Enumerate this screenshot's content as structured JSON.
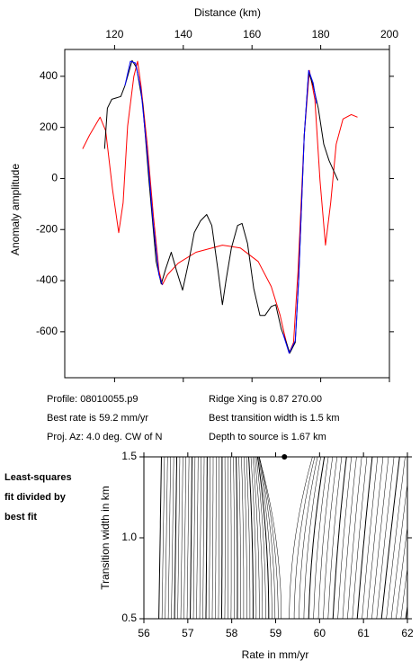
{
  "chart_data": [
    {
      "type": "line",
      "x_label": "Distance (km)",
      "y_label": "Anomaly amplitude",
      "xlim": [
        105.5,
        200
      ],
      "xticks": [
        120,
        140,
        160,
        180,
        200
      ],
      "ylim": [
        -780,
        505
      ],
      "yticks": [
        400,
        200,
        0,
        -200,
        -400,
        -600
      ],
      "series": [
        {
          "color": "#ff0000",
          "x": [
            110.7,
            112.7,
            115.8,
            117.4,
            119.4,
            121.2,
            122.5,
            123.8,
            125.6,
            126.7,
            127.7,
            129.5,
            131.3,
            132.9,
            133.9,
            135.4,
            138.5,
            143.7,
            151.4,
            156.6,
            161.8,
            165.6,
            168.2,
            169.5,
            170.8,
            172.1,
            173.4,
            175.2,
            176.7,
            178.3,
            179.8,
            181.4,
            182.9,
            184.5,
            186.5,
            188.9,
            190.7
          ],
          "values": [
            116,
            169,
            240,
            187,
            -42,
            -212,
            -95,
            205,
            399,
            459,
            363,
            134,
            -148,
            -360,
            -416,
            -377,
            -332,
            -289,
            -261,
            -272,
            -325,
            -423,
            -536,
            -614,
            -684,
            -642,
            -360,
            169,
            423,
            310,
            -7,
            -261,
            -95,
            134,
            233,
            250,
            240
          ]
        },
        {
          "color": "#000000",
          "x": [
            117.1,
            117.9,
            119.2,
            121.8,
            123.0,
            125.1,
            126.4,
            128.2,
            130.0,
            132.1,
            133.6,
            134.9,
            136.5,
            138.0,
            139.8,
            141.6,
            143.2,
            145.0,
            146.8,
            148.3,
            150.1,
            151.4,
            152.5,
            154.0,
            155.8,
            157.1,
            158.7,
            160.5,
            162.3,
            163.8,
            165.6,
            166.9,
            168.5,
            170.0,
            171.0,
            172.6,
            173.6,
            175.2,
            176.5,
            177.8,
            179.3,
            180.9,
            182.4,
            185.0
          ],
          "values": [
            116,
            275,
            310,
            321,
            363,
            462,
            434,
            293,
            -7,
            -325,
            -413,
            -353,
            -289,
            -360,
            -437,
            -325,
            -212,
            -166,
            -141,
            -184,
            -360,
            -494,
            -395,
            -272,
            -184,
            -176,
            -254,
            -430,
            -536,
            -536,
            -501,
            -494,
            -589,
            -642,
            -684,
            -642,
            -395,
            169,
            416,
            363,
            275,
            134,
            71,
            -7
          ]
        },
        {
          "color": "#0000ff",
          "x": [
            123.0,
            124.6,
            126.1,
            127.7,
            129.5,
            131.3,
            132.9,
            133.9,
            null,
            169.0,
            170.8,
            172.6,
            173.6,
            175.2,
            176.5,
            177.8,
            178.8
          ],
          "values": [
            363,
            459,
            452,
            346,
            99,
            -183,
            -377,
            -416,
            null,
            -607,
            -684,
            -635,
            -395,
            169,
            423,
            374,
            293
          ]
        }
      ]
    },
    {
      "type": "contour",
      "x_label": "Rate in mm/yr",
      "y_label": "Transition width in km",
      "xlim": [
        56,
        62
      ],
      "xticks": [
        56,
        57,
        58,
        59,
        60,
        61,
        62
      ],
      "ylim": [
        0.5,
        1.5
      ],
      "yticks": [
        0.5,
        {
          "value": 1,
          "label": "1.0"
        },
        1.5
      ],
      "best_point": {
        "x": 59.2,
        "y": 1.5
      }
    }
  ],
  "info": {
    "left": [
      "Profile: 08010055.p9",
      "Best rate is 59.2 mm/yr",
      "Proj. Az: 4.0 deg. CW of N"
    ],
    "right": [
      "Ridge Xing is 0.87 270.00",
      "Best transition width is 1.5 km",
      "Depth to source is   1.67 km"
    ]
  },
  "side_note": [
    "Least-squares",
    "fit divided by",
    "best fit"
  ]
}
